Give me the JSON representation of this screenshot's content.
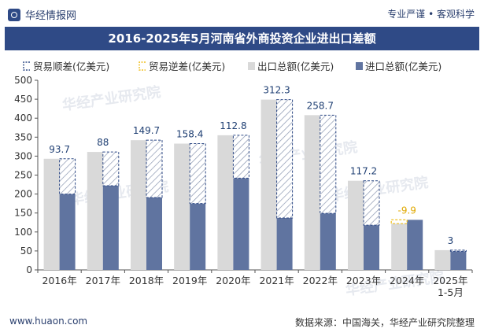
{
  "header": {
    "brand": "华经情报网",
    "slogan": "专业严谨 • 客观科学",
    "title": "2016-2025年5月河南省外商投资企业进出口差额"
  },
  "watermark": "华经产业研究院",
  "watermark_url": "www.huaon.com",
  "footer": {
    "url": "www.huaon.com",
    "source": "数据来源：中国海关，华经产业研究院整理"
  },
  "colors": {
    "title_bg": "#2f4a86",
    "export": "#d9d9d9",
    "import": "#6074a0",
    "surplus": "#2f4a86",
    "deficit": "#f0c020"
  },
  "chart_data": {
    "type": "bar",
    "categories": [
      "2016年",
      "2017年",
      "2018年",
      "2019年",
      "2020年",
      "2021年",
      "2022年",
      "2023年",
      "2024年",
      "2025年\n1-5月"
    ],
    "ylim": [
      0,
      500
    ],
    "yticks": [
      0,
      50,
      100,
      150,
      200,
      250,
      300,
      350,
      400,
      450,
      500
    ],
    "legend_position": "top",
    "grid": false,
    "series": [
      {
        "name": "贸易顺差(亿美元)",
        "key": "surplus",
        "values": [
          93.7,
          88,
          149.7,
          158.4,
          112.8,
          312.3,
          258.7,
          117.2,
          null,
          3
        ]
      },
      {
        "name": "贸易逆差(亿美元)",
        "key": "deficit",
        "values": [
          null,
          null,
          null,
          null,
          null,
          null,
          null,
          null,
          -9.9,
          null
        ]
      },
      {
        "name": "出口总额(亿美元)",
        "key": "export",
        "values": [
          293,
          311,
          342,
          333,
          355,
          449,
          408,
          235,
          122,
          52
        ]
      },
      {
        "name": "进口总额(亿美元)",
        "key": "import",
        "values": [
          200,
          222,
          191,
          175,
          242,
          137,
          149,
          118,
          132,
          49
        ]
      }
    ],
    "data_labels": [
      "93.7",
      "88",
      "149.7",
      "158.4",
      "112.8",
      "312.3",
      "258.7",
      "117.2",
      "-9.9",
      "3"
    ]
  }
}
